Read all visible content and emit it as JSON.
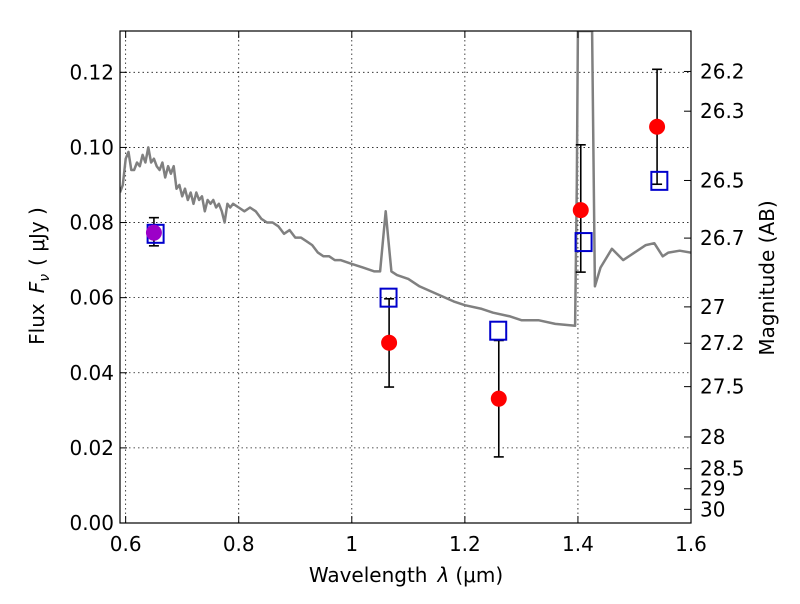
{
  "chart_data": {
    "type": "scatter",
    "xlabel_prefix": "Wavelength",
    "xlabel_symbol": "λ",
    "xlabel_unit": "(μm)",
    "ylabel_prefix": "Flux",
    "ylabel_symbol": "F",
    "ylabel_subscript": "ν",
    "ylabel_unit": "( μJy )",
    "y2label": "Magnitude (AB)",
    "xlim": [
      0.59,
      1.6
    ],
    "ylim": [
      0.0,
      0.131
    ],
    "grid": true,
    "x_ticks": [
      0.6,
      0.8,
      1.0,
      1.2,
      1.4,
      1.6
    ],
    "x_tick_labels": [
      "0.6",
      "0.8",
      "1",
      "1.2",
      "1.4",
      "1.6"
    ],
    "y_ticks": [
      0.0,
      0.02,
      0.04,
      0.06,
      0.08,
      0.1,
      0.12
    ],
    "y_tick_labels": [
      "0.00",
      "0.02",
      "0.04",
      "0.06",
      "0.08",
      "0.10",
      "0.12"
    ],
    "mag_ticks": [
      "26.2",
      "26.3",
      "26.5",
      "26.7",
      "27",
      "27.2",
      "27.5",
      "28",
      "28.5",
      "29",
      "30"
    ],
    "colors": {
      "observed": "#ff0000",
      "model_points": "#0000cc",
      "model_spectrum": "#808080",
      "overlap": "#9c00c8",
      "errorbar": "#000000"
    },
    "observed": [
      {
        "x": 0.65,
        "y": 0.0773,
        "yerr_low": 0.0035,
        "yerr_high": 0.004
      },
      {
        "x": 1.066,
        "y": 0.048,
        "yerr_low": 0.0118,
        "yerr_high": 0.0117
      },
      {
        "x": 1.26,
        "y": 0.0331,
        "yerr_low": 0.0155,
        "yerr_high": 0.0155
      },
      {
        "x": 1.405,
        "y": 0.0833,
        "yerr_low": 0.0165,
        "yerr_high": 0.0174
      },
      {
        "x": 1.54,
        "y": 0.1055,
        "yerr_low": 0.0153,
        "yerr_high": 0.0153
      }
    ],
    "model_points": [
      {
        "x": 0.653,
        "y": 0.077
      },
      {
        "x": 1.065,
        "y": 0.06
      },
      {
        "x": 1.259,
        "y": 0.0512
      },
      {
        "x": 1.41,
        "y": 0.0748
      },
      {
        "x": 1.544,
        "y": 0.0911
      }
    ],
    "model_spectrum": [
      [
        0.59,
        0.088
      ],
      [
        0.595,
        0.09
      ],
      [
        0.6,
        0.097
      ],
      [
        0.605,
        0.0988
      ],
      [
        0.61,
        0.094
      ],
      [
        0.615,
        0.094
      ],
      [
        0.62,
        0.096
      ],
      [
        0.625,
        0.095
      ],
      [
        0.63,
        0.098
      ],
      [
        0.635,
        0.096
      ],
      [
        0.64,
        0.1
      ],
      [
        0.645,
        0.096
      ],
      [
        0.65,
        0.097
      ],
      [
        0.655,
        0.095
      ],
      [
        0.66,
        0.094
      ],
      [
        0.665,
        0.096
      ],
      [
        0.67,
        0.092
      ],
      [
        0.675,
        0.095
      ],
      [
        0.68,
        0.093
      ],
      [
        0.685,
        0.095
      ],
      [
        0.69,
        0.089
      ],
      [
        0.695,
        0.09
      ],
      [
        0.7,
        0.087
      ],
      [
        0.705,
        0.089
      ],
      [
        0.71,
        0.086
      ],
      [
        0.715,
        0.088
      ],
      [
        0.72,
        0.085
      ],
      [
        0.725,
        0.088
      ],
      [
        0.73,
        0.086
      ],
      [
        0.735,
        0.087
      ],
      [
        0.74,
        0.083
      ],
      [
        0.745,
        0.086
      ],
      [
        0.75,
        0.085
      ],
      [
        0.755,
        0.086
      ],
      [
        0.76,
        0.084
      ],
      [
        0.765,
        0.085
      ],
      [
        0.77,
        0.083
      ],
      [
        0.775,
        0.08
      ],
      [
        0.78,
        0.085
      ],
      [
        0.785,
        0.084
      ],
      [
        0.79,
        0.085
      ],
      [
        0.8,
        0.084
      ],
      [
        0.81,
        0.083
      ],
      [
        0.82,
        0.084
      ],
      [
        0.83,
        0.083
      ],
      [
        0.84,
        0.081
      ],
      [
        0.85,
        0.08
      ],
      [
        0.86,
        0.08
      ],
      [
        0.87,
        0.079
      ],
      [
        0.88,
        0.077
      ],
      [
        0.89,
        0.078
      ],
      [
        0.9,
        0.076
      ],
      [
        0.91,
        0.076
      ],
      [
        0.92,
        0.075
      ],
      [
        0.93,
        0.074
      ],
      [
        0.94,
        0.072
      ],
      [
        0.95,
        0.071
      ],
      [
        0.96,
        0.071
      ],
      [
        0.97,
        0.07
      ],
      [
        0.98,
        0.07
      ],
      [
        1.0,
        0.069
      ],
      [
        1.02,
        0.068
      ],
      [
        1.04,
        0.067
      ],
      [
        1.05,
        0.067
      ],
      [
        1.055,
        0.075
      ],
      [
        1.06,
        0.083
      ],
      [
        1.065,
        0.075
      ],
      [
        1.07,
        0.067
      ],
      [
        1.08,
        0.066
      ],
      [
        1.1,
        0.065
      ],
      [
        1.12,
        0.063
      ],
      [
        1.15,
        0.061
      ],
      [
        1.18,
        0.059
      ],
      [
        1.2,
        0.058
      ],
      [
        1.23,
        0.057
      ],
      [
        1.25,
        0.056
      ],
      [
        1.28,
        0.055
      ],
      [
        1.3,
        0.054
      ],
      [
        1.33,
        0.054
      ],
      [
        1.36,
        0.053
      ],
      [
        1.395,
        0.0525
      ],
      [
        1.398,
        0.09
      ],
      [
        1.4,
        0.131
      ],
      [
        1.405,
        0.131
      ],
      [
        1.42,
        0.131
      ],
      [
        1.425,
        0.131
      ],
      [
        1.43,
        0.063
      ],
      [
        1.44,
        0.068
      ],
      [
        1.46,
        0.073
      ],
      [
        1.48,
        0.07
      ],
      [
        1.5,
        0.072
      ],
      [
        1.52,
        0.074
      ],
      [
        1.535,
        0.0745
      ],
      [
        1.55,
        0.071
      ],
      [
        1.56,
        0.072
      ],
      [
        1.58,
        0.0725
      ],
      [
        1.6,
        0.072
      ]
    ]
  }
}
